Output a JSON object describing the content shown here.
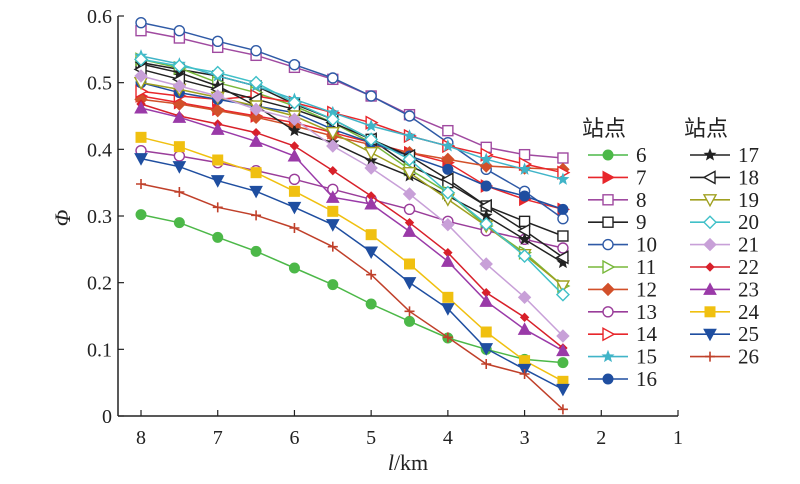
{
  "chart_data": {
    "type": "line",
    "xlabel_var": "l",
    "xlabel_unit": "/km",
    "ylabel": "Φ",
    "xlim": [
      8.3,
      1
    ],
    "ylim": [
      0,
      0.6
    ],
    "x_ticks": [
      "8",
      "7",
      "6",
      "5",
      "4",
      "3",
      "2",
      "1"
    ],
    "y_ticks": [
      "0",
      "0.1",
      "0.2",
      "0.3",
      "0.4",
      "0.5",
      "0.6"
    ],
    "x": [
      8,
      7.5,
      7,
      6.5,
      6,
      5.5,
      5,
      4.5,
      4,
      3.5,
      3,
      2.5
    ],
    "legend_headers": [
      "站点",
      "站点"
    ],
    "series": [
      {
        "name": "6",
        "color": "#4cb848",
        "marker": "filled-circle",
        "values": [
          0.302,
          0.29,
          0.268,
          0.247,
          0.222,
          0.197,
          0.168,
          0.142,
          0.117,
          0.1,
          0.085,
          0.08
        ]
      },
      {
        "name": "7",
        "color": "#e8262b",
        "marker": "filled-tri-right",
        "values": [
          0.48,
          0.47,
          0.46,
          0.45,
          0.44,
          0.425,
          0.41,
          0.395,
          0.38,
          0.345,
          0.325,
          0.31
        ]
      },
      {
        "name": "8",
        "color": "#a04aa0",
        "marker": "open-square",
        "values": [
          0.578,
          0.567,
          0.553,
          0.541,
          0.523,
          0.505,
          0.48,
          0.452,
          0.428,
          0.403,
          0.392,
          0.387
        ]
      },
      {
        "name": "9",
        "color": "#222222",
        "marker": "open-square",
        "values": [
          0.53,
          0.52,
          0.51,
          0.495,
          0.468,
          0.445,
          0.415,
          0.375,
          0.35,
          0.315,
          0.292,
          0.27
        ]
      },
      {
        "name": "10",
        "color": "#2f5aa6",
        "marker": "open-circle",
        "values": [
          0.59,
          0.578,
          0.562,
          0.548,
          0.527,
          0.507,
          0.48,
          0.45,
          0.41,
          0.37,
          0.337,
          0.296
        ]
      },
      {
        "name": "11",
        "color": "#78b83a",
        "marker": "open-tri-right",
        "values": [
          0.535,
          0.522,
          0.5,
          0.485,
          0.465,
          0.44,
          0.41,
          0.37,
          0.335,
          0.285,
          0.245,
          0.195
        ]
      },
      {
        "name": "12",
        "color": "#d2502a",
        "marker": "filled-diamond",
        "values": [
          0.475,
          0.468,
          0.458,
          0.448,
          0.435,
          0.42,
          0.407,
          0.395,
          0.385,
          0.375,
          0.372,
          0.37
        ]
      },
      {
        "name": "13",
        "color": "#9a3d9a",
        "marker": "open-circle",
        "values": [
          0.398,
          0.39,
          0.38,
          0.368,
          0.355,
          0.34,
          0.325,
          0.31,
          0.292,
          0.278,
          0.265,
          0.252
        ]
      },
      {
        "name": "14",
        "color": "#e8262b",
        "marker": "open-tri-right",
        "values": [
          0.487,
          0.48,
          0.475,
          0.48,
          0.47,
          0.455,
          0.44,
          0.42,
          0.405,
          0.392,
          0.378,
          0.365
        ]
      },
      {
        "name": "15",
        "color": "#40b4c8",
        "marker": "star",
        "values": [
          0.54,
          0.528,
          0.51,
          0.495,
          0.475,
          0.455,
          0.435,
          0.42,
          0.405,
          0.385,
          0.37,
          0.355
        ]
      },
      {
        "name": "16",
        "color": "#1f4ea0",
        "marker": "filled-circle",
        "values": [
          0.5,
          0.485,
          0.475,
          0.465,
          0.455,
          0.43,
          0.41,
          0.39,
          0.37,
          0.345,
          0.33,
          0.31
        ]
      },
      {
        "name": "17",
        "color": "#222222",
        "marker": "star",
        "values": [
          0.528,
          0.515,
          0.495,
          0.465,
          0.428,
          0.41,
          0.383,
          0.36,
          0.33,
          0.3,
          0.265,
          0.23
        ]
      },
      {
        "name": "18",
        "color": "#222222",
        "marker": "open-tri-left",
        "values": [
          0.52,
          0.505,
          0.49,
          0.475,
          0.46,
          0.44,
          0.415,
          0.39,
          0.355,
          0.315,
          0.278,
          0.238
        ]
      },
      {
        "name": "19",
        "color": "#a0a020",
        "marker": "open-tri-down",
        "values": [
          0.5,
          0.49,
          0.478,
          0.465,
          0.45,
          0.425,
          0.395,
          0.365,
          0.325,
          0.285,
          0.242,
          0.195
        ]
      },
      {
        "name": "20",
        "color": "#40c0c8",
        "marker": "open-diamond",
        "values": [
          0.535,
          0.525,
          0.515,
          0.5,
          0.47,
          0.445,
          0.415,
          0.385,
          0.335,
          0.288,
          0.24,
          0.182
        ]
      },
      {
        "name": "21",
        "color": "#c8a0d8",
        "marker": "filled-diamond",
        "values": [
          0.51,
          0.495,
          0.48,
          0.46,
          0.445,
          0.405,
          0.372,
          0.333,
          0.287,
          0.228,
          0.178,
          0.12
        ]
      },
      {
        "name": "22",
        "color": "#d8202a",
        "marker": "small-diamond",
        "values": [
          0.468,
          0.45,
          0.438,
          0.425,
          0.405,
          0.368,
          0.33,
          0.29,
          0.245,
          0.185,
          0.148,
          0.102
        ]
      },
      {
        "name": "23",
        "color": "#9a3aa8",
        "marker": "filled-tri-up",
        "values": [
          0.462,
          0.448,
          0.43,
          0.412,
          0.39,
          0.328,
          0.318,
          0.277,
          0.232,
          0.172,
          0.13,
          0.098
        ]
      },
      {
        "name": "24",
        "color": "#f0c010",
        "marker": "filled-square",
        "values": [
          0.418,
          0.404,
          0.384,
          0.365,
          0.337,
          0.307,
          0.272,
          0.228,
          0.178,
          0.126,
          0.083,
          0.052
        ]
      },
      {
        "name": "25",
        "color": "#1f4ea0",
        "marker": "filled-tri-down",
        "values": [
          0.386,
          0.374,
          0.353,
          0.337,
          0.313,
          0.287,
          0.246,
          0.2,
          0.161,
          0.101,
          0.07,
          0.04
        ]
      },
      {
        "name": "26",
        "color": "#c0402a",
        "marker": "plus",
        "values": [
          0.348,
          0.336,
          0.313,
          0.301,
          0.282,
          0.254,
          0.212,
          0.157,
          0.118,
          0.078,
          0.063,
          0.01
        ]
      }
    ]
  }
}
